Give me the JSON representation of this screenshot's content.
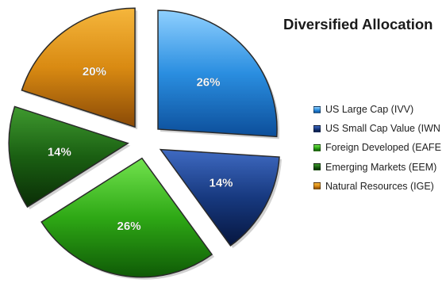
{
  "chart_data": {
    "type": "pie",
    "title": "Diversified Allocation",
    "legend_position": "right",
    "exploded": true,
    "slices": [
      {
        "label": "US Large Cap (IVV)",
        "value": 26,
        "value_label": "26%",
        "color": "#2a8ee0",
        "highlight": "#8fd0ff",
        "shade": "#0c4e9a"
      },
      {
        "label": "US Small Cap Value (IWN",
        "value": 14,
        "value_label": "14%",
        "color": "#17397f",
        "highlight": "#3f6ac2",
        "shade": "#06163f"
      },
      {
        "label": "Foreign Developed (EAFE",
        "value": 26,
        "value_label": "26%",
        "color": "#2ea815",
        "highlight": "#72e34e",
        "shade": "#0f5a06"
      },
      {
        "label": "Emerging Markets (EEM)",
        "value": 14,
        "value_label": "14%",
        "color": "#1a5f12",
        "highlight": "#3f9a2f",
        "shade": "#0a2d06"
      },
      {
        "label": "Natural Resources (IGE)",
        "value": 20,
        "value_label": "20%",
        "color": "#d98a12",
        "highlight": "#f5b63c",
        "shade": "#8a4a06"
      }
    ]
  }
}
